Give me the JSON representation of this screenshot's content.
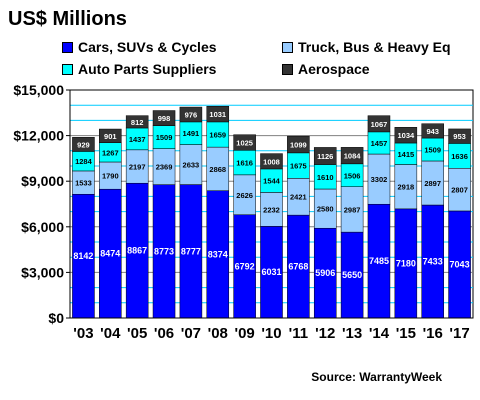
{
  "title": "US$ Millions",
  "source": "Source: WarrantyWeek",
  "chart_data": {
    "type": "bar",
    "stacked": true,
    "categories": [
      "'03",
      "'04",
      "'05",
      "'06",
      "'07",
      "'08",
      "'09",
      "'10",
      "'11",
      "'12",
      "'13",
      "'14",
      "'15",
      "'16",
      "'17"
    ],
    "series": [
      {
        "name": "Cars, SUVs & Cycles",
        "color": "#0000ff",
        "text_color": "#ffffff",
        "values": [
          8142,
          8474,
          8867,
          8773,
          8777,
          8374,
          6792,
          6031,
          6768,
          5906,
          5650,
          7485,
          7180,
          7433,
          7043
        ]
      },
      {
        "name": "Truck, Bus & Heavy Eq",
        "color": "#99ccff",
        "text_color": "#000000",
        "values": [
          1533,
          1790,
          2197,
          2369,
          2633,
          2868,
          2626,
          2232,
          2421,
          2580,
          2987,
          3302,
          2918,
          2897,
          2807
        ]
      },
      {
        "name": "Auto Parts Suppliers",
        "color": "#00ffff",
        "text_color": "#000000",
        "values": [
          1284,
          1267,
          1437,
          1509,
          1491,
          1659,
          1616,
          1544,
          1675,
          1610,
          1506,
          1457,
          1415,
          1509,
          1636
        ]
      },
      {
        "name": "Aerospace",
        "color": "#333333",
        "text_color": "#ffffff",
        "values": [
          929,
          901,
          812,
          998,
          976,
          1031,
          1025,
          1008,
          1099,
          1126,
          1084,
          1067,
          1034,
          943,
          953
        ]
      }
    ],
    "ylim": [
      0,
      15000
    ],
    "yticks": [
      0,
      3000,
      6000,
      9000,
      12000,
      15000
    ],
    "ytick_labels": [
      "$0",
      "$3,000",
      "$6,000",
      "$9,000",
      "$12,000",
      "$15,000"
    ],
    "grid": true,
    "grid_color": "#00ccff",
    "legend_position": "top"
  }
}
